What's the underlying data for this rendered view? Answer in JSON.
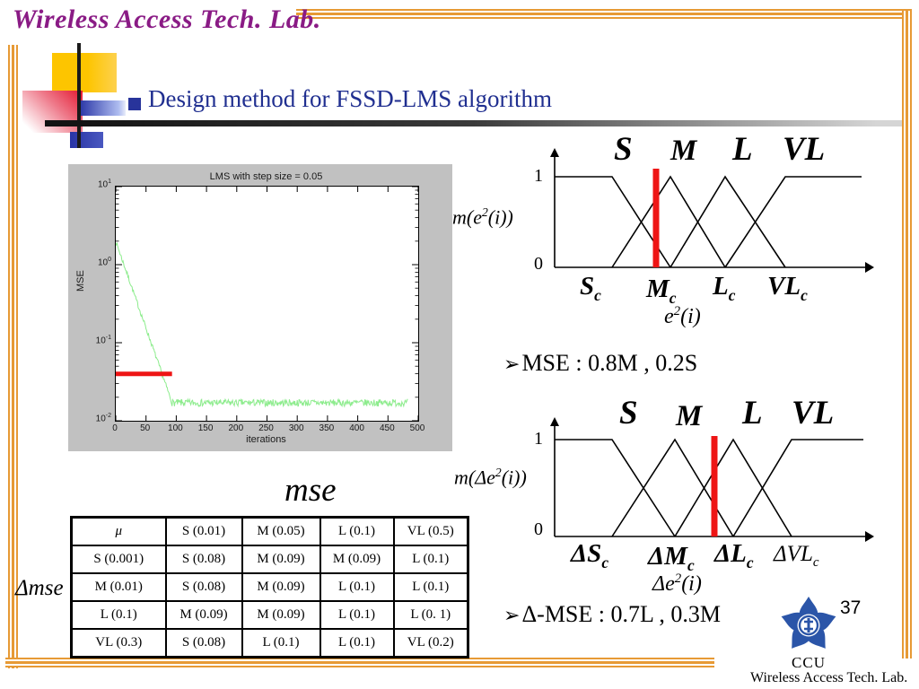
{
  "header": {
    "lab_name": "Wireless Access Tech. Lab."
  },
  "title": {
    "text": "Design method for FSSD-LMS algorithm"
  },
  "chart_data": {
    "type": "line",
    "title": "LMS with step size = 0.05",
    "xlabel": "iterations",
    "ylabel": "MSE",
    "x_range": [
      0,
      500
    ],
    "y_log_range": [
      -2,
      1
    ],
    "x_ticks": [
      0,
      50,
      100,
      150,
      200,
      250,
      300,
      350,
      400,
      450,
      500
    ],
    "y_tick_exponents": [
      1,
      0,
      -1,
      -2
    ],
    "grid": false,
    "series": [
      {
        "name": "LMS learning curve",
        "color": "#8dec8d",
        "model": {
          "start_log": 0.3,
          "floor_log": -1.77,
          "floor_at_iteration": 93,
          "end_iteration": 483,
          "noise_log_pre": 0.03,
          "noise_log_post": 0.045
        }
      }
    ],
    "red_reference": {
      "value_log": -1.4,
      "x_start": 0,
      "x_end": 93,
      "color": "#ee1515"
    }
  },
  "fuzzy1": {
    "y_max": "1",
    "y_min": "0",
    "sets": [
      "S",
      "M",
      "L",
      "VL"
    ],
    "centers": [
      {
        "base": "S",
        "sub": "c"
      },
      {
        "base": "M",
        "sub": "c"
      },
      {
        "base": "L",
        "sub": "c"
      },
      {
        "base": "VL",
        "sub": "c"
      }
    ],
    "axis_label": {
      "pre": "m(e",
      "sup": "2",
      "post": "(i))"
    },
    "x_label": {
      "pre": "e",
      "sup": "2",
      "post": "(i)"
    },
    "membership_at_red_line": {
      "M": 0.8,
      "S": 0.2
    }
  },
  "bullet1": {
    "marker": "➢",
    "text": "MSE : 0.8M , 0.2S"
  },
  "fuzzy2": {
    "y_max": "1",
    "y_min": "0",
    "sets": [
      "S",
      "M",
      "L",
      "VL"
    ],
    "centers": [
      {
        "base": "ΔS",
        "sub": "c"
      },
      {
        "base": "ΔM",
        "sub": "c"
      },
      {
        "base": "ΔL",
        "sub": "c"
      },
      {
        "base": "ΔVL",
        "sub": "c"
      }
    ],
    "axis_label": {
      "pre": "m(Δe",
      "sup": "2",
      "post": "(i))"
    },
    "x_label": {
      "pre": "Δe",
      "sup": "2",
      "post": "(i)"
    },
    "membership_at_red_line": {
      "L": 0.7,
      "M": 0.3
    }
  },
  "bullet2": {
    "marker": "➢",
    "text": "Δ-MSE : 0.7L , 0.3M"
  },
  "table": {
    "title": "mse",
    "row_axis_label": "Δmse",
    "header": [
      "μ",
      "S (0.01)",
      "M (0.05)",
      "L (0.1)",
      "VL (0.5)"
    ],
    "rows": [
      [
        "S (0.001)",
        "S (0.08)",
        "M (0.09)",
        "M (0.09)",
        "L (0.1)"
      ],
      [
        "M (0.01)",
        "S (0.08)",
        "M (0.09)",
        "L (0.1)",
        "L (0.1)"
      ],
      [
        "L (0.1)",
        "M (0.09)",
        "M (0.09)",
        "L (0.1)",
        "L (0. 1)"
      ],
      [
        "VL (0.3)",
        "S (0.08)",
        "L (0.1)",
        "L (0.1)",
        "VL (0.2)"
      ]
    ]
  },
  "footer": {
    "page_number": "37",
    "logo_text": "CCU",
    "lab_name": "Wireless Access Tech. Lab."
  },
  "colors": {
    "accent_orange": "#e79a35",
    "header_purple": "#8a1b85",
    "title_blue": "#202f90",
    "curve_green": "#8dec8d",
    "marker_red": "#ee1515",
    "panel_gray": "#c1c1c1"
  }
}
